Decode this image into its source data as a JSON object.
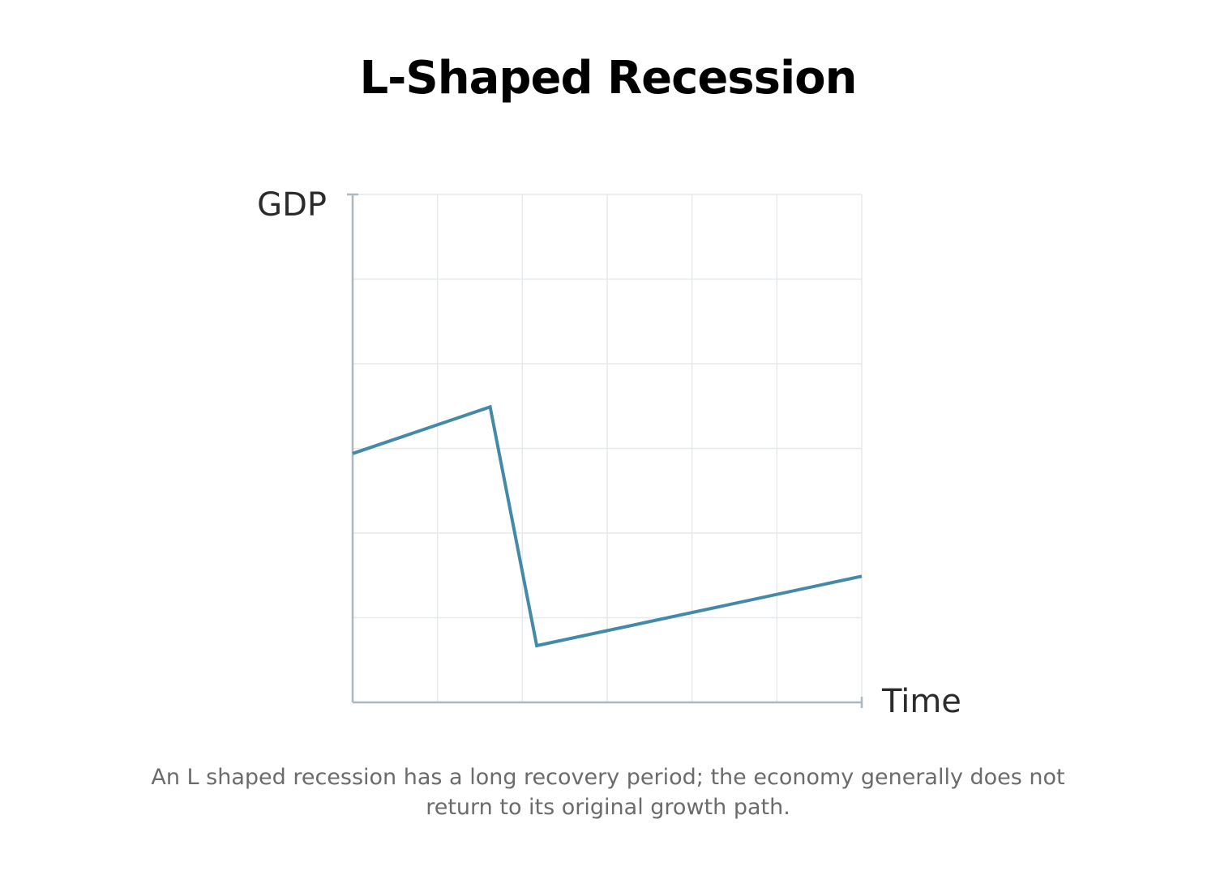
{
  "chart_data": {
    "type": "line",
    "title": "L-Shaped Recession",
    "xlabel": "Time",
    "ylabel": "GDP",
    "xlim": [
      0,
      6
    ],
    "ylim": [
      0,
      6
    ],
    "grid": true,
    "x_ticks_shown": false,
    "y_ticks_shown": false,
    "series": [
      {
        "x": [
          0,
          1.62,
          2.17,
          6
        ],
        "y": [
          2.94,
          3.49,
          0.67,
          1.49
        ]
      }
    ],
    "colors": {
      "line": "#4589a8",
      "grid": "#e6e9ec",
      "axis": "#a9b8c2"
    }
  },
  "caption": "An L shaped recession has a long recovery period; the economy generally does not return to its original growth path."
}
